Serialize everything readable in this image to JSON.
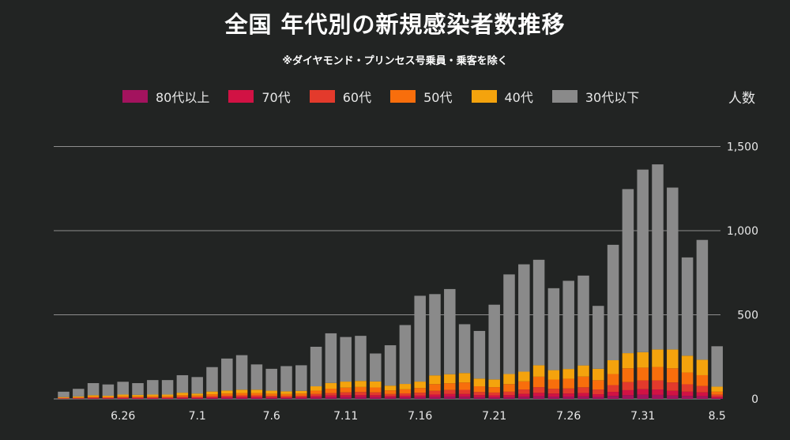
{
  "title": "全国 年代別の新規感染者数推移",
  "subtitle": "※ダイヤモンド・プリンセス号乗員・乗客を除く",
  "unit_label": "人数",
  "legend": [
    {
      "label": "80代以上",
      "color": "#a3135e"
    },
    {
      "label": "70代",
      "color": "#d11244"
    },
    {
      "label": "60代",
      "color": "#e33a2c"
    },
    {
      "label": "50代",
      "color": "#f86e0c"
    },
    {
      "label": "40代",
      "color": "#f4a30d"
    },
    {
      "label": "30代以下",
      "color": "#8a8a8a"
    }
  ],
  "chart_data": {
    "type": "bar",
    "stacked": true,
    "categories": [
      "6.22",
      "6.23",
      "6.24",
      "6.25",
      "6.26",
      "6.27",
      "6.28",
      "6.29",
      "6.30",
      "7.1",
      "7.2",
      "7.3",
      "7.4",
      "7.5",
      "7.6",
      "7.7",
      "7.8",
      "7.9",
      "7.10",
      "7.11",
      "7.12",
      "7.13",
      "7.14",
      "7.15",
      "7.16",
      "7.17",
      "7.18",
      "7.19",
      "7.20",
      "7.21",
      "7.22",
      "7.23",
      "7.24",
      "7.25",
      "7.26",
      "7.27",
      "7.28",
      "7.29",
      "7.30",
      "7.31",
      "8.1",
      "8.2",
      "8.3",
      "8.4",
      "8.5"
    ],
    "x_tick_labels": [
      "6.26",
      "7.1",
      "7.6",
      "7.11",
      "7.16",
      "7.21",
      "7.26",
      "7.31",
      "8.5"
    ],
    "series": [
      {
        "name": "80代以上",
        "values": [
          1,
          1,
          2,
          2,
          2,
          2,
          2,
          2,
          3,
          3,
          4,
          5,
          5,
          5,
          4,
          4,
          5,
          8,
          9,
          10,
          11,
          10,
          8,
          9,
          10,
          12,
          14,
          13,
          10,
          9,
          10,
          13,
          16,
          14,
          14,
          15,
          12,
          18,
          22,
          25,
          24,
          20,
          18,
          17,
          5
        ]
      },
      {
        "name": "70代",
        "values": [
          1,
          2,
          2,
          2,
          3,
          3,
          3,
          3,
          4,
          4,
          5,
          6,
          7,
          7,
          6,
          5,
          6,
          9,
          11,
          12,
          12,
          12,
          9,
          10,
          11,
          14,
          15,
          16,
          13,
          12,
          13,
          17,
          20,
          18,
          18,
          20,
          16,
          24,
          30,
          33,
          32,
          28,
          25,
          22,
          8
        ]
      },
      {
        "name": "60代",
        "values": [
          2,
          2,
          4,
          3,
          4,
          4,
          4,
          4,
          6,
          5,
          7,
          8,
          9,
          9,
          8,
          8,
          8,
          12,
          15,
          17,
          18,
          17,
          12,
          14,
          16,
          22,
          24,
          25,
          18,
          17,
          20,
          26,
          34,
          28,
          30,
          34,
          28,
          40,
          48,
          52,
          54,
          50,
          44,
          38,
          12
        ]
      },
      {
        "name": "50代",
        "values": [
          3,
          4,
          6,
          5,
          7,
          6,
          7,
          7,
          10,
          8,
          12,
          13,
          14,
          14,
          13,
          12,
          13,
          20,
          26,
          28,
          30,
          29,
          22,
          24,
          28,
          40,
          40,
          44,
          34,
          32,
          45,
          48,
          62,
          55,
          58,
          64,
          55,
          66,
          82,
          76,
          80,
          84,
          70,
          64,
          18
        ]
      },
      {
        "name": "40代",
        "values": [
          4,
          6,
          8,
          7,
          10,
          9,
          10,
          10,
          14,
          12,
          16,
          18,
          20,
          20,
          18,
          16,
          16,
          26,
          34,
          36,
          36,
          36,
          28,
          32,
          38,
          52,
          54,
          56,
          46,
          46,
          60,
          58,
          68,
          56,
          58,
          66,
          68,
          82,
          90,
          92,
          104,
          112,
          100,
          92,
          30
        ]
      },
      {
        "name": "30代以下",
        "values": [
          32,
          45,
          72,
          67,
          76,
          70,
          86,
          86,
          104,
          98,
          145,
          190,
          205,
          150,
          130,
          150,
          152,
          235,
          295,
          265,
          268,
          166,
          240,
          350,
          510,
          483,
          506,
          290,
          283,
          444,
          592,
          638,
          627,
          487,
          524,
          534,
          374,
          686,
          975,
          1085,
          1100,
          962,
          584,
          712,
          240
        ]
      }
    ],
    "ylim": [
      0,
      1600
    ],
    "yticks": [
      0,
      500,
      1000,
      1500
    ],
    "ytick_labels": [
      "0",
      "500",
      "1,000",
      "1,500"
    ],
    "grid": true,
    "legend_position": "top"
  }
}
